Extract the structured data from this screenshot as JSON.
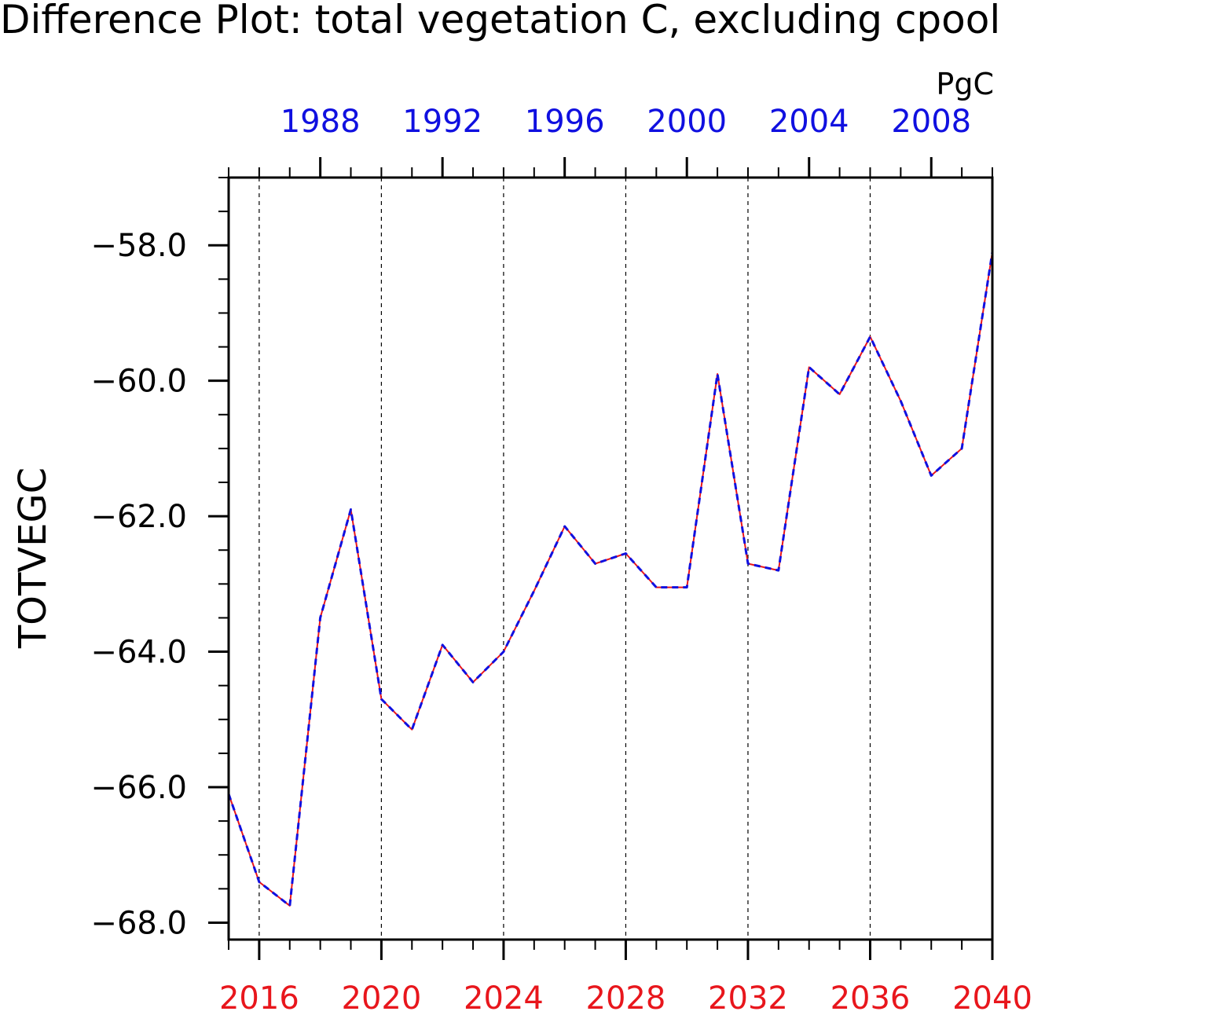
{
  "chart_data": {
    "type": "line",
    "title": "Difference Plot: total vegetation C, excluding cpool",
    "units": "PgC",
    "ylabel": "TOTVEGC",
    "xlabel": "",
    "x": [
      2015,
      2016,
      2017,
      2018,
      2019,
      2020,
      2021,
      2022,
      2023,
      2024,
      2025,
      2026,
      2027,
      2028,
      2029,
      2030,
      2031,
      2032,
      2033,
      2034,
      2035,
      2036,
      2037,
      2038,
      2039,
      2040
    ],
    "xlim": [
      2015,
      2040
    ],
    "ylim": [
      -68.25,
      -57.0
    ],
    "yticks": [
      -68.0,
      -66.0,
      -64.0,
      -62.0,
      -60.0,
      -58.0
    ],
    "ytick_labels": [
      "−68.0",
      "−66.0",
      "−64.0",
      "−62.0",
      "−60.0",
      "−58.0"
    ],
    "bottom_axis": {
      "color": "#e8161c",
      "ticks": [
        2016,
        2020,
        2024,
        2028,
        2032,
        2036,
        2040
      ],
      "labels": [
        "2016",
        "2020",
        "2024",
        "2028",
        "2032",
        "2036",
        "2040"
      ]
    },
    "top_axis": {
      "color": "#1010e0",
      "labels": [
        "1988",
        "1992",
        "1996",
        "2000",
        "2004",
        "2008"
      ],
      "label_positions": [
        2018,
        2022,
        2026,
        2030,
        2034,
        2038
      ]
    },
    "grid": "vertical dashed at major x ticks",
    "series": [
      {
        "color": "#e8161c",
        "style": "solid",
        "values": [
          -66.1,
          -67.4,
          -67.75,
          -63.5,
          -61.9,
          -64.7,
          -65.15,
          -63.9,
          -64.45,
          -64.0,
          -63.1,
          -62.15,
          -62.7,
          -62.55,
          -63.05,
          -63.05,
          -59.9,
          -62.7,
          -62.8,
          -59.8,
          -60.2,
          -59.35,
          -60.3,
          -61.4,
          -61.0,
          -58.1
        ]
      },
      {
        "color": "#1010e0",
        "style": "dashed",
        "values": [
          -66.1,
          -67.4,
          -67.75,
          -63.5,
          -61.9,
          -64.7,
          -65.15,
          -63.9,
          -64.45,
          -64.0,
          -63.1,
          -62.15,
          -62.7,
          -62.55,
          -63.05,
          -63.05,
          -59.9,
          -62.7,
          -62.8,
          -59.8,
          -60.2,
          -59.35,
          -60.3,
          -61.4,
          -61.0,
          -58.1
        ]
      }
    ]
  }
}
